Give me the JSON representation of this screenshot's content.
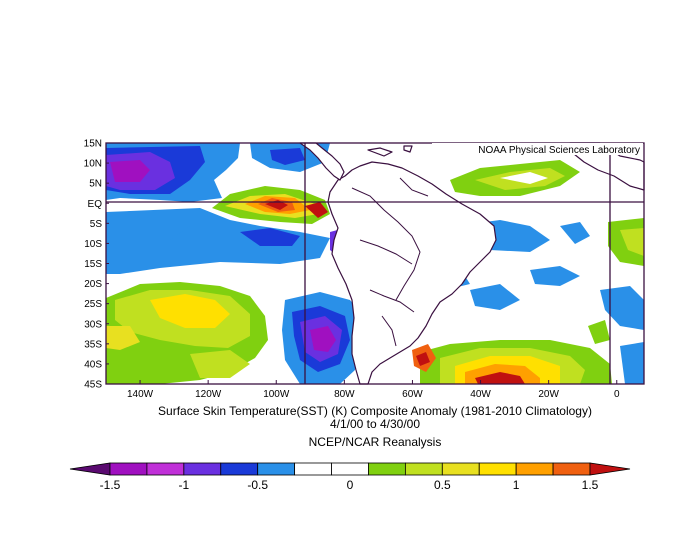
{
  "map": {
    "watermark": "NOAA Physical Sciences Laboratory",
    "lat_labels": [
      "15N",
      "10N",
      "5N",
      "EQ",
      "5S",
      "10S",
      "15S",
      "20S",
      "25S",
      "30S",
      "35S",
      "40S",
      "45S"
    ],
    "lon_labels": [
      "140W",
      "120W",
      "100W",
      "80W",
      "60W",
      "40W",
      "20W",
      "0"
    ],
    "lat_range": [
      -45,
      15
    ],
    "lon_range": [
      -150,
      8
    ],
    "reference_lines": {
      "latitude": 0,
      "longitudes": [
        -90,
        0
      ]
    }
  },
  "caption": {
    "line1": "Surface Skin Temperature(SST) (K) Composite Anomaly (1981-2010 Climatology)",
    "line2": "4/1/00  to 4/30/00",
    "line3": "NCEP/NCAR Reanalysis"
  },
  "colorbar": {
    "tick_labels": [
      "-1.5",
      "-1",
      "-0.5",
      "0",
      "0.5",
      "1",
      "1.5"
    ],
    "colors": [
      "#5a0a70",
      "#a010c0",
      "#c030d8",
      "#6a30e0",
      "#1a3ad8",
      "#2a90e8",
      "#ffffff",
      "#ffffff",
      "#80d010",
      "#c0e020",
      "#e8e020",
      "#ffe000",
      "#ffa000",
      "#f06010",
      "#c01010"
    ]
  },
  "colors": {
    "frame": "#3a1040",
    "land_outline": "#3a1040"
  }
}
